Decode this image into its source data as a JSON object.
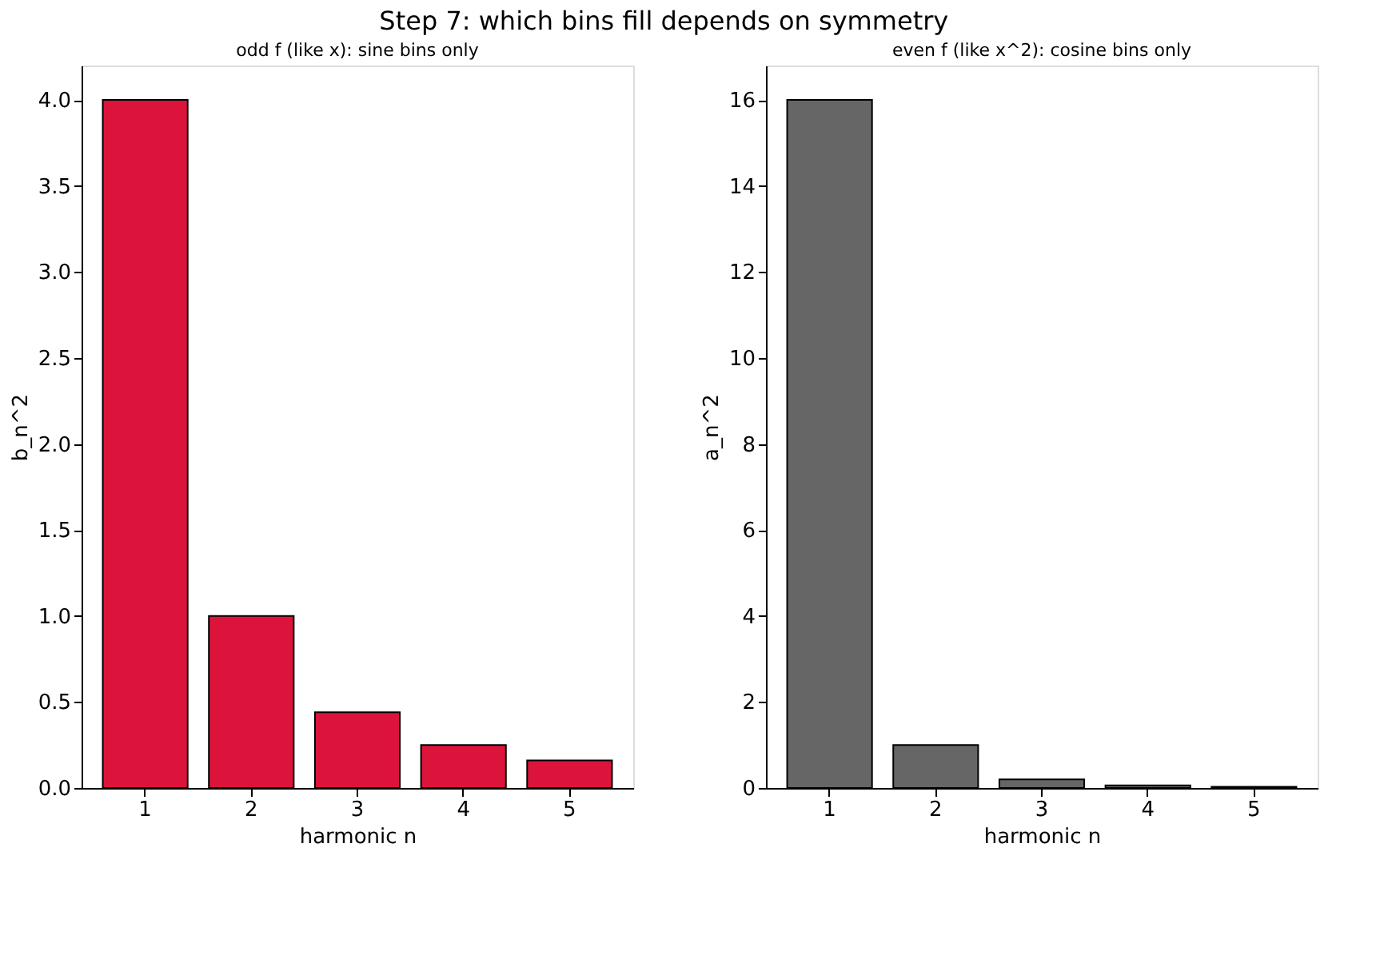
{
  "chart_data": [
    {
      "type": "bar",
      "title": "odd f (like x): sine bins only",
      "annotations": [
        "Step 7: which bins fill depends on symmetry"
      ],
      "xlabel": "harmonic n",
      "ylabel": "b_n^2",
      "categories": [
        "1",
        "2",
        "3",
        "4",
        "5"
      ],
      "series": [
        {
          "color": "#dc143c",
          "values": [
            4.0,
            1.0,
            0.44,
            0.25,
            0.16
          ]
        }
      ],
      "ylim": [
        0,
        4.2
      ],
      "yticks": [
        {
          "value": 0,
          "label": "0.0"
        },
        0.5,
        {
          "value": 1,
          "label": "1.0"
        },
        1.5,
        {
          "value": 2,
          "label": "2.0"
        },
        2.5,
        {
          "value": 3,
          "label": "3.0"
        },
        3.5,
        {
          "value": 4,
          "label": "4.0"
        }
      ],
      "grid": false
    },
    {
      "type": "bar",
      "title": "even f (like x^2): cosine bins only",
      "xlabel": "harmonic n",
      "ylabel": "a_n^2",
      "categories": [
        "1",
        "2",
        "3",
        "4",
        "5"
      ],
      "series": [
        {
          "color": "#666666",
          "values": [
            16.0,
            1.0,
            0.2,
            0.06,
            0.03
          ]
        }
      ],
      "ylim": [
        0,
        16.8
      ],
      "yticks": [
        0,
        2,
        4,
        6,
        8,
        10,
        12,
        14,
        16
      ],
      "grid": false
    }
  ]
}
